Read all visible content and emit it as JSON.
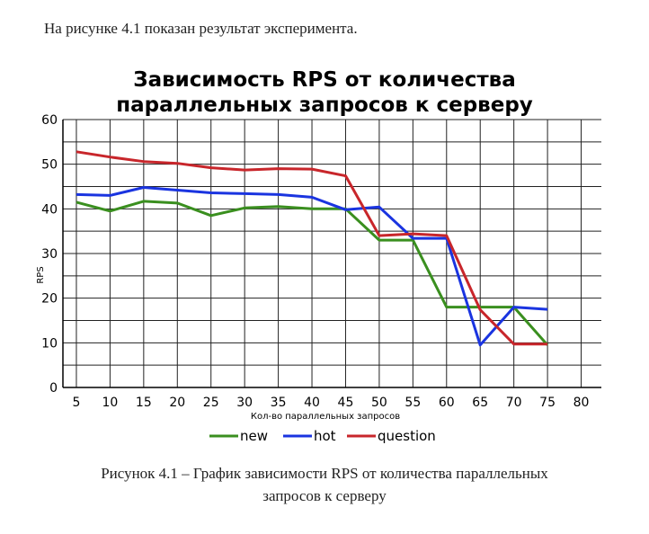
{
  "intro_text": "На рисунке 4.1 показан результат эксперимента.",
  "caption_line1": "Рисунок 4.1 – График зависимости RPS от количества параллельных",
  "caption_line2": "запросов к серверу",
  "chart_data": {
    "type": "line",
    "title_line1": "Зависимость RPS от количества",
    "title_line2": "параллельных запросов к серверу",
    "xlabel": "Кол-во параллельных запросов",
    "ylabel": "RPS",
    "x_ticks": [
      5,
      10,
      15,
      20,
      25,
      30,
      35,
      40,
      45,
      50,
      55,
      60,
      65,
      70,
      75,
      80
    ],
    "y_ticks": [
      0,
      10,
      20,
      30,
      40,
      50,
      60
    ],
    "xlim": [
      3,
      83
    ],
    "ylim": [
      0,
      60
    ],
    "grid": true,
    "legend_position": "bottom",
    "x": [
      5,
      10,
      15,
      20,
      25,
      30,
      35,
      40,
      45,
      50,
      55,
      60,
      65,
      70,
      75
    ],
    "series": [
      {
        "name": "new",
        "color": "#3a8f1f",
        "values": [
          41.5,
          39.5,
          41.7,
          41.3,
          38.5,
          40.2,
          40.5,
          40.0,
          40.0,
          33.0,
          33.0,
          18.0,
          18.0,
          18.0,
          9.5
        ]
      },
      {
        "name": "hot",
        "color": "#1a34e0",
        "values": [
          43.2,
          43.0,
          44.8,
          44.2,
          43.6,
          43.4,
          43.2,
          42.6,
          39.8,
          40.4,
          33.4,
          33.4,
          9.5,
          18.0,
          17.5
        ]
      },
      {
        "name": "question",
        "color": "#c8262b",
        "values": [
          52.8,
          51.6,
          50.6,
          50.2,
          49.2,
          48.7,
          49.0,
          48.9,
          47.4,
          34.0,
          34.4,
          34.0,
          17.4,
          9.7,
          9.7
        ]
      }
    ]
  }
}
